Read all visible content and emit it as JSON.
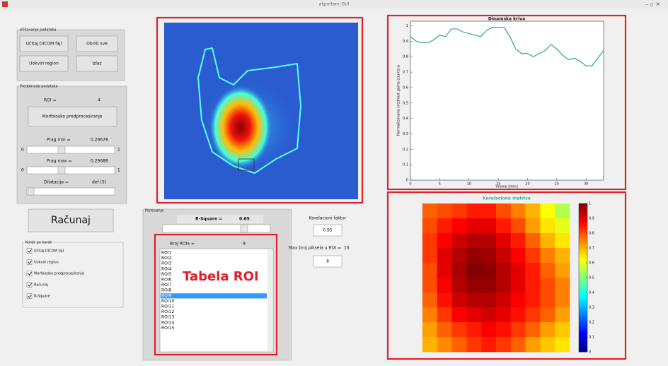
{
  "window": {
    "title": "algoritam_GUI"
  },
  "load_panel": {
    "title": "Učitavanje podataka",
    "buttons": [
      "Učitaj DICOM fajl",
      "Obriši sve",
      "Uokviri region",
      "Izlaz"
    ]
  },
  "preprocess_panel": {
    "title": "Predobrada podataka",
    "roi_label": "ROI =",
    "roi_value": "4",
    "morph_button": "Morfolosko predprocesiranje",
    "prag_min_label": "Prag min =",
    "prag_min_value": "0.29678",
    "prag_max_label": "Prag max =",
    "prag_max_value": "0.29688",
    "slider_min": "0",
    "slider_max": "1",
    "dilatacija_label": "Dilatacija =",
    "dilatacija_value": "def (5)"
  },
  "compute_button": "Računaj",
  "steps_panel": {
    "title": "Korak po korak",
    "items": [
      "Učitaj DICOM fajl",
      "Uokviri region",
      "Morfolosko predprocesiranje",
      "Računaj",
      "R-Square"
    ]
  },
  "plot_panel": {
    "title": "Plotovanje",
    "r_square_label": "R-Square =",
    "r_square_value": "0.65",
    "corr_label": "Korelacioni faktor",
    "corr_value": "0.95",
    "roi_count_label": "Broj ROIa =",
    "roi_count_value": "9",
    "max_pixels_label": "Max broj piksela u ROI =",
    "max_pixels_value": "16",
    "max_pixels_input": "8",
    "roi_list": [
      "ROI1",
      "ROI2",
      "ROI3",
      "ROI4",
      "ROI5",
      "ROI6",
      "ROI7",
      "ROI8",
      "ROI9",
      "ROI10",
      "ROI11",
      "ROI12",
      "ROI13",
      "ROI14",
      "ROI15"
    ],
    "selected_index": 8,
    "annotation": "Tabela ROI"
  },
  "chart_data": [
    {
      "type": "line",
      "title": "Dinamska kriva",
      "xlabel": "Vreme [min]",
      "ylabel": "Normalizovana vrednost gama counts-a",
      "x": [
        0,
        1,
        2,
        3,
        4,
        5,
        6,
        7,
        8,
        9,
        10,
        11,
        12,
        13,
        14,
        15,
        16,
        17,
        18,
        19,
        20,
        21,
        22,
        23,
        24,
        25,
        26,
        27,
        28,
        29,
        30,
        31,
        32,
        33
      ],
      "values": [
        0.93,
        0.9,
        0.89,
        0.89,
        0.91,
        0.94,
        0.93,
        0.98,
        0.98,
        0.96,
        0.95,
        0.94,
        0.93,
        0.97,
        0.99,
        0.99,
        0.99,
        0.93,
        0.85,
        0.82,
        0.82,
        0.8,
        0.82,
        0.84,
        0.88,
        0.85,
        0.81,
        0.78,
        0.79,
        0.77,
        0.74,
        0.74,
        0.79,
        0.84
      ],
      "color": "#2ca58d",
      "xlim": [
        0,
        33
      ],
      "xticks": [
        0,
        5,
        10,
        15,
        20,
        25,
        30
      ],
      "ylim": [
        0,
        1.03
      ],
      "yticks": [
        0,
        0.1,
        0.2,
        0.3,
        0.4,
        0.5,
        0.6,
        0.7,
        0.8,
        0.9,
        1
      ],
      "grid": false
    },
    {
      "type": "heatmap",
      "title": "Korelaciona matrica",
      "colormap": "jet",
      "clim": [
        0,
        1
      ],
      "cticks": [
        0,
        0.1,
        0.2,
        0.3,
        0.4,
        0.5,
        0.6,
        0.7,
        0.8,
        0.9,
        1
      ],
      "values": [
        [
          0.78,
          0.8,
          0.82,
          0.85,
          0.85,
          0.8,
          0.75,
          0.7,
          0.62,
          0.55
        ],
        [
          0.8,
          0.85,
          0.88,
          0.9,
          0.9,
          0.85,
          0.8,
          0.72,
          0.65,
          0.6
        ],
        [
          0.82,
          0.88,
          0.92,
          0.95,
          0.95,
          0.9,
          0.85,
          0.78,
          0.7,
          0.65
        ],
        [
          0.82,
          0.9,
          0.95,
          0.98,
          0.97,
          0.93,
          0.88,
          0.82,
          0.75,
          0.7
        ],
        [
          0.8,
          0.9,
          0.96,
          1.0,
          0.99,
          0.95,
          0.9,
          0.85,
          0.78,
          0.72
        ],
        [
          0.8,
          0.88,
          0.95,
          0.98,
          0.98,
          0.95,
          0.9,
          0.85,
          0.8,
          0.75
        ],
        [
          0.78,
          0.86,
          0.92,
          0.95,
          0.95,
          0.92,
          0.88,
          0.85,
          0.8,
          0.75
        ],
        [
          0.75,
          0.82,
          0.88,
          0.9,
          0.92,
          0.9,
          0.86,
          0.82,
          0.78,
          0.72
        ],
        [
          0.72,
          0.78,
          0.82,
          0.85,
          0.88,
          0.86,
          0.82,
          0.78,
          0.72,
          0.68
        ],
        [
          0.7,
          0.74,
          0.78,
          0.82,
          0.85,
          0.82,
          0.78,
          0.72,
          0.68,
          0.65
        ]
      ]
    }
  ]
}
